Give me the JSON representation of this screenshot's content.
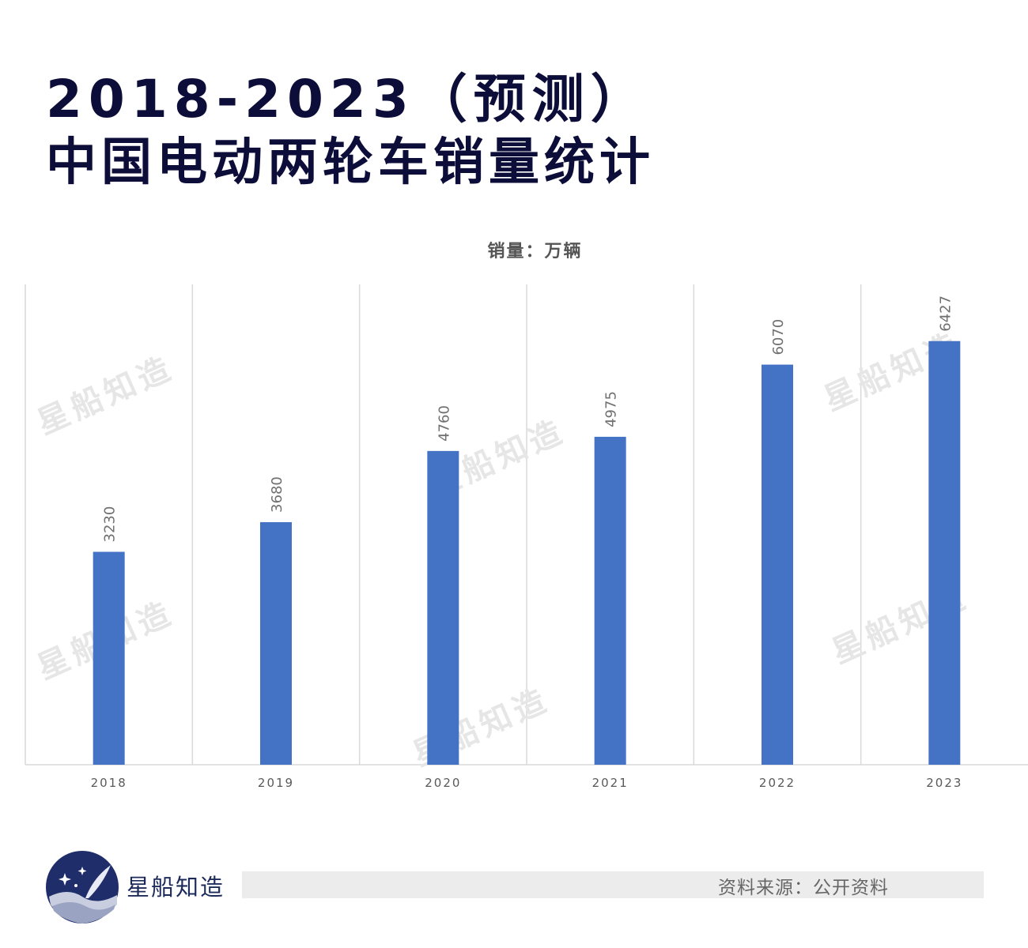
{
  "title": {
    "line1": "2018-2023（预测）",
    "line2": "中国电动两轮车销量统计"
  },
  "colors": {
    "bar": "#4472c4",
    "title": "#0d0d3a",
    "grid": "#d9d9d9",
    "label": "#595959",
    "watermark": "#e6e6e6"
  },
  "chart_data": {
    "type": "bar",
    "title": "2018-2023（预测）中国电动两轮车销量统计",
    "unit_label": "销量：万辆",
    "categories": [
      "2018",
      "2019",
      "2020",
      "2021",
      "2022",
      "2023"
    ],
    "values": [
      3230,
      3680,
      4760,
      4975,
      6070,
      6427
    ],
    "ylim": [
      0,
      7000
    ],
    "grid": "vertical separators between categories",
    "data_labels": "rotated above bars",
    "legend": "none"
  },
  "watermark": {
    "text": "星船知造"
  },
  "footer": {
    "brand": "星船知造",
    "source": "资料来源：公开资料"
  }
}
